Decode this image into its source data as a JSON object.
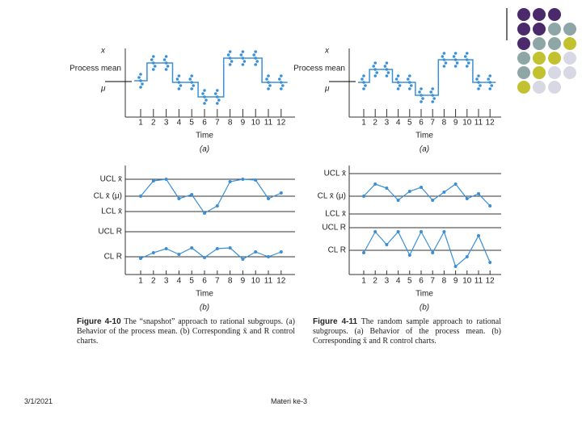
{
  "slide": {
    "date": "3/1/2021",
    "footer": "Materi ke-3"
  },
  "figure_10": {
    "panel_a": {
      "y_symbol": "x",
      "y_label": "Process mean",
      "mu": "μ",
      "x_ticks": [
        "1",
        "2",
        "3",
        "4",
        "5",
        "6",
        "7",
        "8",
        "9",
        "10",
        "11",
        "12"
      ],
      "x_label": "Time",
      "tag": "(a)"
    },
    "panel_b": {
      "limit_labels": [
        "UCL x̄",
        "CL x̄ (μ)",
        "LCL x̄",
        "UCL R",
        "CL R"
      ],
      "x_ticks": [
        "1",
        "2",
        "3",
        "4",
        "5",
        "6",
        "7",
        "8",
        "9",
        "10",
        "11",
        "12"
      ],
      "x_label": "Time",
      "tag": "(b)"
    },
    "caption_label": "Figure 4-10",
    "caption": "The “snapshot” approach to rational subgroups. (a) Behavior of the process mean. (b) Corresponding x̄ and R control charts."
  },
  "figure_11": {
    "panel_a": {
      "y_symbol": "x",
      "y_label": "Process mean",
      "mu": "μ",
      "x_ticks": [
        "1",
        "2",
        "3",
        "4",
        "5",
        "6",
        "7",
        "8",
        "9",
        "10",
        "11",
        "12"
      ],
      "x_label": "Time",
      "tag": "(a)"
    },
    "panel_b": {
      "limit_labels": [
        "UCL x̄",
        "CL x̄ (μ)",
        "LCL x̄",
        "UCL R",
        "CL R"
      ],
      "x_ticks": [
        "1",
        "2",
        "3",
        "4",
        "5",
        "6",
        "7",
        "8",
        "9",
        "10",
        "11",
        "12"
      ],
      "x_label": "Time",
      "tag": "(b)"
    },
    "caption_label": "Figure 4-11",
    "caption": "The random sample approach to rational subgroups. (a) Behavior of the process mean. (b) Corresponding x̄ and R control charts."
  }
}
